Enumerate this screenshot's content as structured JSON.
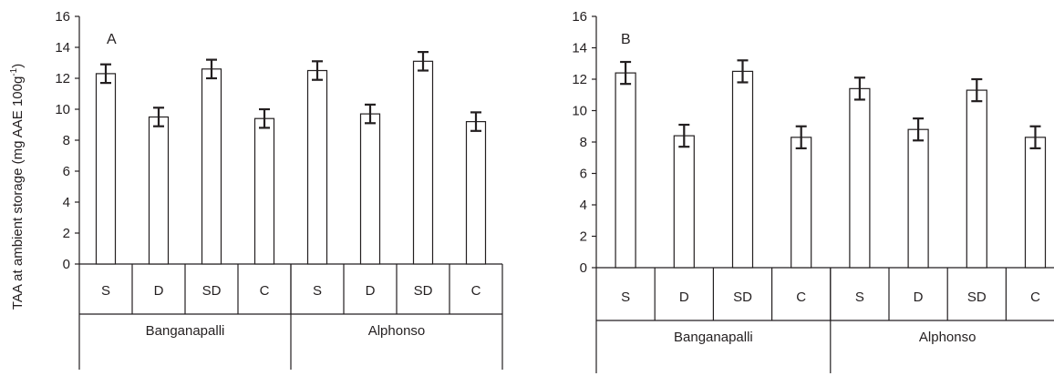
{
  "ylabel": "TAA at ambient storage (mg AAE 100g",
  "ylabel_sup": "-1",
  "ylabel_close": ")",
  "chart_data": [
    {
      "type": "bar",
      "panel_label": "A",
      "categories": [
        "S",
        "D",
        "SD",
        "C",
        "S",
        "D",
        "SD",
        "C"
      ],
      "groups": [
        {
          "name": "Banganapalli",
          "span": 4
        },
        {
          "name": "Alphonso",
          "span": 4
        }
      ],
      "values": [
        12.3,
        9.5,
        12.6,
        9.4,
        12.5,
        9.7,
        13.1,
        9.2
      ],
      "errors": [
        0.6,
        0.6,
        0.6,
        0.6,
        0.6,
        0.6,
        0.6,
        0.6
      ],
      "ylim": [
        0,
        16
      ],
      "yticks": [
        "0",
        "2",
        "4",
        "6",
        "8",
        "10",
        "12",
        "14",
        "16"
      ],
      "grid": false,
      "bar_fill": "#ffffff",
      "stroke": "#231f20"
    },
    {
      "type": "bar",
      "panel_label": "B",
      "categories": [
        "S",
        "D",
        "SD",
        "C",
        "S",
        "D",
        "SD",
        "C"
      ],
      "groups": [
        {
          "name": "Banganapalli",
          "span": 4
        },
        {
          "name": "Alphonso",
          "span": 4
        }
      ],
      "values": [
        12.4,
        8.4,
        12.5,
        8.3,
        11.4,
        8.8,
        11.3,
        8.3
      ],
      "errors": [
        0.7,
        0.7,
        0.7,
        0.7,
        0.7,
        0.7,
        0.7,
        0.7
      ],
      "ylim": [
        0,
        16
      ],
      "yticks": [
        "0",
        "2",
        "4",
        "6",
        "8",
        "10",
        "12",
        "14",
        "16"
      ],
      "grid": false,
      "bar_fill": "#ffffff",
      "stroke": "#231f20"
    }
  ]
}
